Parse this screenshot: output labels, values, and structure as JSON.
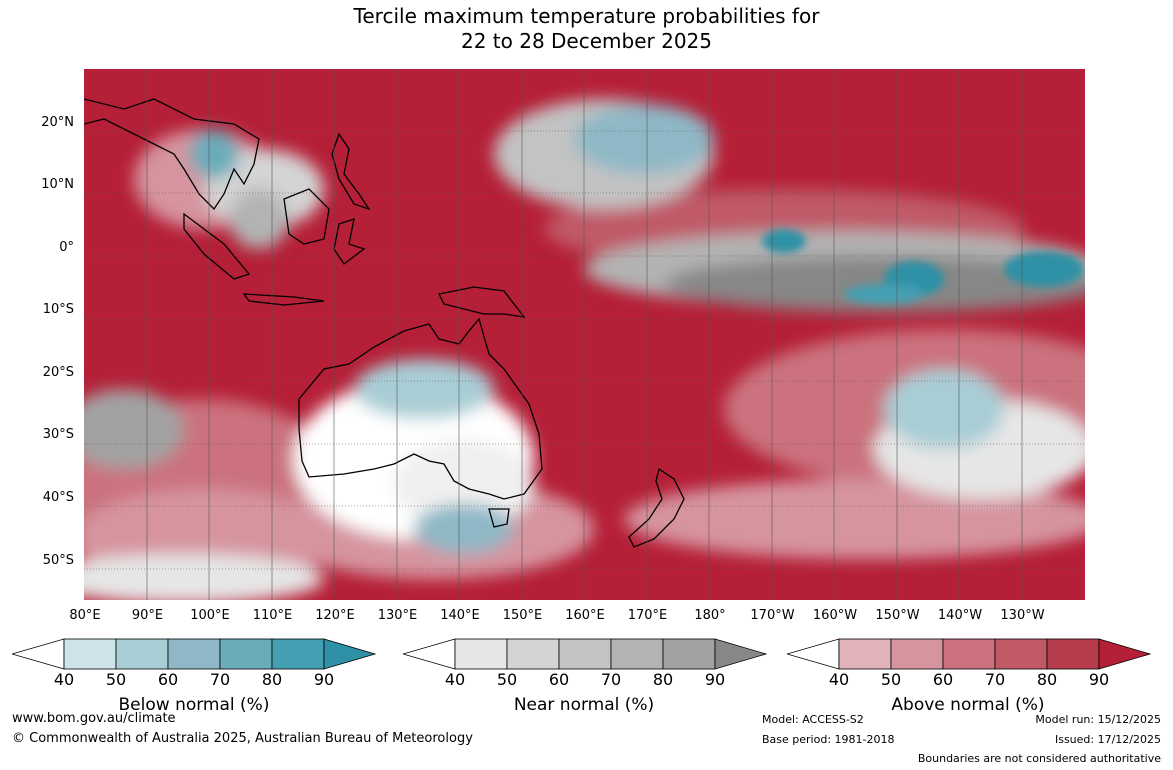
{
  "title_line1": "Tercile maximum temperature probabilities for",
  "title_line2": "22 to 28 December 2025",
  "lat_labels": [
    "20°N",
    "10°N",
    "0°",
    "10°S",
    "20°S",
    "30°S",
    "40°S",
    "50°S"
  ],
  "lon_labels": [
    "80°E",
    "90°E",
    "100°E",
    "110°E",
    "120°E",
    "130°E",
    "140°E",
    "150°E",
    "160°E",
    "170°E",
    "180°",
    "170°W",
    "160°W",
    "150°W",
    "140°W",
    "130°W"
  ],
  "colorbars": [
    {
      "name": "Below normal (%)",
      "ticks": [
        "40",
        "50",
        "60",
        "70",
        "80",
        "90"
      ],
      "colors": [
        "#cfe4ea",
        "#a9cdd5",
        "#8eb8c6",
        "#6aacba",
        "#459fb2",
        "#2f91a6"
      ]
    },
    {
      "name": "Near normal (%)",
      "ticks": [
        "40",
        "50",
        "60",
        "70",
        "80",
        "90"
      ],
      "colors": [
        "#e6e6e6",
        "#d4d4d4",
        "#c3c3c3",
        "#b3b3b3",
        "#a2a2a2",
        "#878787"
      ]
    },
    {
      "name": "Above normal (%)",
      "ticks": [
        "40",
        "50",
        "60",
        "70",
        "80",
        "90"
      ],
      "colors": [
        "#e3b3bc",
        "#d6949f",
        "#cb727e",
        "#c05a67",
        "#b63c4b",
        "#b51f37"
      ]
    }
  ],
  "footer": {
    "website": "www.bom.gov.au/climate",
    "copyright": "© Commonwealth of Australia 2025, Australian Bureau of Meteorology",
    "model": "Model: ACCESS-S2",
    "base_period": "Base period: 1981-2018",
    "model_run": "Model run: 15/12/2025",
    "issued": "Issued: 17/12/2025",
    "disclaimer": "Boundaries are not considered authoritative"
  }
}
